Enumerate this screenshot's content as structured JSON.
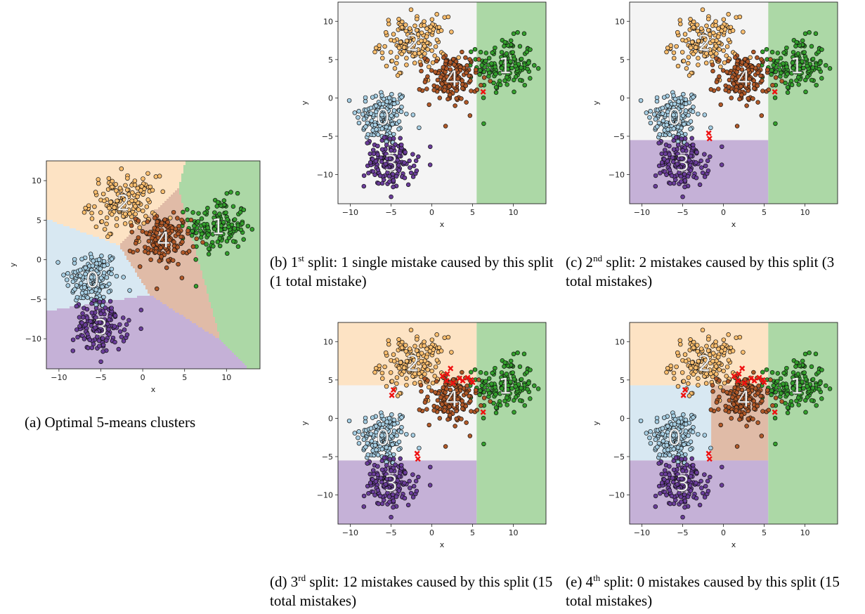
{
  "colors": {
    "c0": "#a6cee3",
    "c1": "#33a02c",
    "c2": "#fdbf6f",
    "c3": "#6a3d9a",
    "c4": "#b15928",
    "r0": "#d8e8f2",
    "r1": "#acd8a6",
    "r2": "#fde3c4",
    "r3": "#c5b1d7",
    "r4": "#e0bba7",
    "neutral": "#f4f4f4",
    "mistake": "#ee1111"
  },
  "axes": {
    "xlabel": "x",
    "ylabel": "y",
    "xticks": [
      "−10",
      "−5",
      "0",
      "5",
      "10"
    ],
    "yticks": [
      "10",
      "5",
      "0",
      "−5",
      "−10"
    ],
    "xticks_values": [
      -10,
      -5,
      0,
      5,
      10
    ],
    "yticks_values": [
      10,
      5,
      0,
      -5,
      -10
    ]
  },
  "captions": {
    "a": {
      "pre": "(a) Optimal 5-means clusters",
      "sup": "",
      "post": ""
    },
    "b": {
      "pre": "(b) 1",
      "sup": "st",
      "post": " split:  1 single mistake caused by this split (1 total mistake)"
    },
    "c": {
      "pre": "(c) 2",
      "sup": "nd",
      "post": " split:  2 mistakes caused by this split (3 total mistakes)"
    },
    "d": {
      "pre": "(d) 3",
      "sup": "rd",
      "post": " split:  12 mistakes caused by this split (15 total mistakes)"
    },
    "e": {
      "pre": "(e) 4",
      "sup": "th",
      "post": " split: 0 mistakes caused by this split (15 total mistakes)"
    }
  },
  "chart_data": [
    {
      "id": "a",
      "type": "scatter",
      "title": "",
      "xlabel": "x",
      "ylabel": "y",
      "xlim": [
        -11.5,
        14
      ],
      "ylim": [
        -13.8,
        12.5
      ],
      "partition": "voronoi",
      "centers": [
        {
          "label": "0",
          "x": -6.0,
          "y": -2.5
        },
        {
          "label": "1",
          "x": 9.0,
          "y": 4.2
        },
        {
          "label": "2",
          "x": -2.3,
          "y": 7.2
        },
        {
          "label": "3",
          "x": -5.0,
          "y": -8.5
        },
        {
          "label": "4",
          "x": 2.5,
          "y": 2.5
        }
      ],
      "mistakes": []
    },
    {
      "id": "b",
      "type": "scatter",
      "title": "",
      "xlabel": "x",
      "ylabel": "y",
      "xlim": [
        -11.5,
        14
      ],
      "ylim": [
        -13.8,
        12.5
      ],
      "partition": "tree",
      "regions": [
        {
          "x": [
            -11.5,
            5.5
          ],
          "y": [
            -13.8,
            12.5
          ],
          "fill": "neutral"
        },
        {
          "x": [
            5.5,
            14
          ],
          "y": [
            -13.8,
            12.5
          ],
          "fill": "r1"
        }
      ],
      "centers": [
        {
          "label": "0",
          "x": -6.0,
          "y": -2.5
        },
        {
          "label": "1",
          "x": 9.0,
          "y": 4.2
        },
        {
          "label": "2",
          "x": -2.3,
          "y": 7.2
        },
        {
          "label": "3",
          "x": -5.0,
          "y": -8.5
        },
        {
          "label": "4",
          "x": 2.5,
          "y": 2.5
        }
      ],
      "mistakes": [
        {
          "x": 6.3,
          "y": 0.8
        }
      ]
    },
    {
      "id": "c",
      "type": "scatter",
      "title": "",
      "xlabel": "x",
      "ylabel": "y",
      "xlim": [
        -11.5,
        14
      ],
      "ylim": [
        -13.8,
        12.5
      ],
      "partition": "tree",
      "regions": [
        {
          "x": [
            -11.5,
            5.5
          ],
          "y": [
            -5.5,
            12.5
          ],
          "fill": "neutral"
        },
        {
          "x": [
            -11.5,
            5.5
          ],
          "y": [
            -13.8,
            -5.5
          ],
          "fill": "r3"
        },
        {
          "x": [
            5.5,
            14
          ],
          "y": [
            -13.8,
            12.5
          ],
          "fill": "r1"
        }
      ],
      "centers": [
        {
          "label": "0",
          "x": -6.0,
          "y": -2.5
        },
        {
          "label": "1",
          "x": 9.0,
          "y": 4.2
        },
        {
          "label": "2",
          "x": -2.3,
          "y": 7.2
        },
        {
          "label": "3",
          "x": -5.0,
          "y": -8.5
        },
        {
          "label": "4",
          "x": 2.5,
          "y": 2.5
        }
      ],
      "mistakes": [
        {
          "x": 6.3,
          "y": 0.8
        },
        {
          "x": -1.8,
          "y": -4.6
        },
        {
          "x": -1.7,
          "y": -5.3
        }
      ]
    },
    {
      "id": "d",
      "type": "scatter",
      "title": "",
      "xlabel": "x",
      "ylabel": "y",
      "xlim": [
        -11.5,
        14
      ],
      "ylim": [
        -13.8,
        12.5
      ],
      "partition": "tree",
      "regions": [
        {
          "x": [
            -11.5,
            5.5
          ],
          "y": [
            4.3,
            12.5
          ],
          "fill": "r2"
        },
        {
          "x": [
            -11.5,
            5.5
          ],
          "y": [
            -5.5,
            4.3
          ],
          "fill": "neutral"
        },
        {
          "x": [
            -11.5,
            5.5
          ],
          "y": [
            -13.8,
            -5.5
          ],
          "fill": "r3"
        },
        {
          "x": [
            5.5,
            14
          ],
          "y": [
            -13.8,
            12.5
          ],
          "fill": "r1"
        }
      ],
      "centers": [
        {
          "label": "0",
          "x": -6.0,
          "y": -2.5
        },
        {
          "label": "1",
          "x": 9.0,
          "y": 4.2
        },
        {
          "label": "2",
          "x": -2.3,
          "y": 7.2
        },
        {
          "label": "3",
          "x": -5.0,
          "y": -8.5
        },
        {
          "label": "4",
          "x": 2.5,
          "y": 2.5
        }
      ],
      "mistakes": [
        {
          "x": 6.3,
          "y": 0.8
        },
        {
          "x": -1.8,
          "y": -4.6
        },
        {
          "x": -1.7,
          "y": -5.3
        },
        {
          "x": -4.9,
          "y": 3.0
        },
        {
          "x": -4.7,
          "y": 3.7
        },
        {
          "x": 2.3,
          "y": 6.5
        },
        {
          "x": 1.3,
          "y": 5.5
        },
        {
          "x": 1.8,
          "y": 4.9
        },
        {
          "x": 2.6,
          "y": 4.6
        },
        {
          "x": 3.4,
          "y": 5.2
        },
        {
          "x": 4.4,
          "y": 5.3
        },
        {
          "x": 5.0,
          "y": 4.7
        },
        {
          "x": 1.9,
          "y": 5.8
        },
        {
          "x": 3.8,
          "y": 4.9
        },
        {
          "x": 4.8,
          "y": 5.0
        }
      ]
    },
    {
      "id": "e",
      "type": "scatter",
      "title": "",
      "xlabel": "x",
      "ylabel": "y",
      "xlim": [
        -11.5,
        14
      ],
      "ylim": [
        -13.8,
        12.5
      ],
      "partition": "tree",
      "regions": [
        {
          "x": [
            -11.5,
            5.5
          ],
          "y": [
            4.3,
            12.5
          ],
          "fill": "r2"
        },
        {
          "x": [
            -11.5,
            -1.5
          ],
          "y": [
            -5.5,
            4.3
          ],
          "fill": "r0"
        },
        {
          "x": [
            -1.5,
            5.5
          ],
          "y": [
            -5.5,
            4.3
          ],
          "fill": "r4"
        },
        {
          "x": [
            -11.5,
            5.5
          ],
          "y": [
            -13.8,
            -5.5
          ],
          "fill": "r3"
        },
        {
          "x": [
            5.5,
            14
          ],
          "y": [
            -13.8,
            12.5
          ],
          "fill": "r1"
        }
      ],
      "centers": [
        {
          "label": "0",
          "x": -6.0,
          "y": -2.5
        },
        {
          "label": "1",
          "x": 9.0,
          "y": 4.2
        },
        {
          "label": "2",
          "x": -2.3,
          "y": 7.2
        },
        {
          "label": "3",
          "x": -5.0,
          "y": -8.5
        },
        {
          "label": "4",
          "x": 2.5,
          "y": 2.5
        }
      ],
      "mistakes": [
        {
          "x": 6.3,
          "y": 0.8
        },
        {
          "x": -1.8,
          "y": -4.6
        },
        {
          "x": -1.7,
          "y": -5.3
        },
        {
          "x": -4.9,
          "y": 3.0
        },
        {
          "x": -4.7,
          "y": 3.7
        },
        {
          "x": 2.3,
          "y": 6.5
        },
        {
          "x": 1.3,
          "y": 5.5
        },
        {
          "x": 1.8,
          "y": 4.9
        },
        {
          "x": 2.6,
          "y": 4.6
        },
        {
          "x": 3.4,
          "y": 5.2
        },
        {
          "x": 4.4,
          "y": 5.3
        },
        {
          "x": 5.0,
          "y": 4.7
        },
        {
          "x": 1.9,
          "y": 5.8
        },
        {
          "x": 3.8,
          "y": 4.9
        },
        {
          "x": 4.8,
          "y": 5.0
        }
      ]
    }
  ]
}
